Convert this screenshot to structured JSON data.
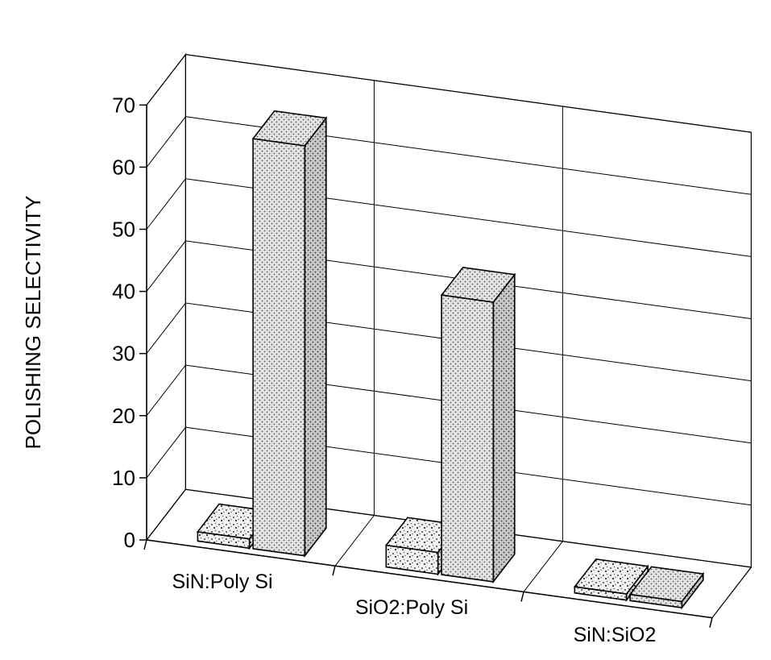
{
  "chart_data": {
    "type": "bar",
    "style": "3d-clustered-column",
    "title": "",
    "xlabel": "",
    "ylabel": "POLISHING SELECTIVITY",
    "ylim": [
      0,
      70
    ],
    "yticks": [
      "0",
      "10",
      "20",
      "30",
      "40",
      "50",
      "60",
      "70"
    ],
    "categories": [
      "SiN:Poly Si",
      "SiO2:Poly Si",
      "SiN:SiO2"
    ],
    "series": [
      {
        "values": [
          1.5,
          3.5,
          1.0
        ]
      },
      {
        "values": [
          66,
          45,
          1.0
        ]
      }
    ],
    "grid": true,
    "legend": "none"
  }
}
